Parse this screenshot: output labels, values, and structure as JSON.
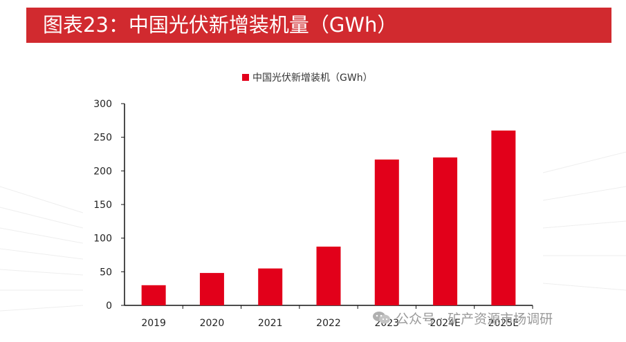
{
  "header": {
    "title": "图表23：中国光伏新增装机量（GWh）"
  },
  "watermark": {
    "text": "公众号 · 矿产资源市场调研",
    "icon": "wechat-icon"
  },
  "colors": {
    "title_bar": "#d12a2f",
    "bar": "#e2001a"
  },
  "chart_data": {
    "type": "bar",
    "title": "",
    "categories": [
      "2019",
      "2020",
      "2021",
      "2022",
      "2023",
      "2024E",
      "2025E"
    ],
    "series": [
      {
        "name": "中国光伏新增装机（GWh）",
        "values": [
          30,
          48.2,
          54.9,
          87.4,
          216.9,
          220,
          260
        ]
      }
    ],
    "ylim": [
      0,
      300
    ],
    "yticks": [
      0,
      50,
      100,
      150,
      200,
      250,
      300
    ],
    "ytick_labels": [
      "0",
      "50",
      "100",
      "150",
      "200",
      "250",
      "300"
    ],
    "xlabel": "",
    "ylabel": "",
    "grid": false,
    "legend": "top-center"
  }
}
